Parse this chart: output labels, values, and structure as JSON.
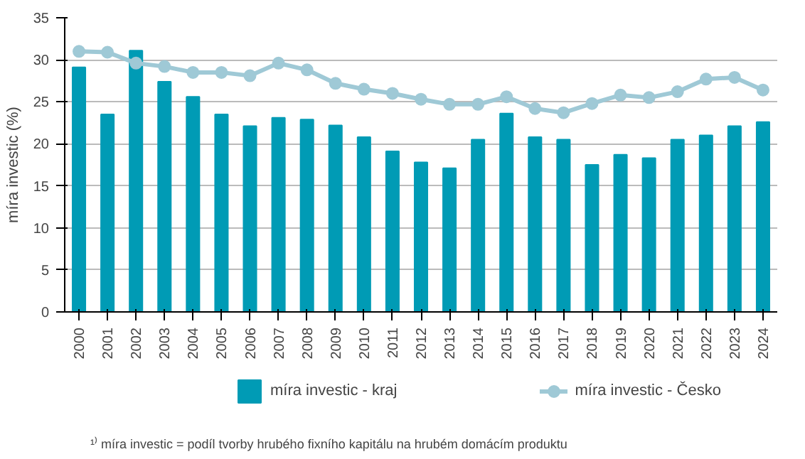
{
  "chart_data": {
    "type": "bar",
    "ylabel": "míra investic (%)",
    "categories": [
      "2000",
      "2001",
      "2002",
      "2003",
      "2004",
      "2005",
      "2006",
      "2007",
      "2008",
      "2009",
      "2010",
      "2011",
      "2012",
      "2013",
      "2014",
      "2015",
      "2016",
      "2017",
      "2018",
      "2019",
      "2020",
      "2021",
      "2022",
      "2023",
      "2024"
    ],
    "series": [
      {
        "name": "míra investic - kraj",
        "color": "#009bb5",
        "values": [
          29.1,
          23.5,
          31.1,
          27.4,
          25.6,
          23.5,
          22.1,
          23.1,
          22.9,
          22.2,
          20.8,
          19.1,
          17.8,
          17.1,
          20.5,
          23.6,
          20.8,
          20.5,
          17.5,
          18.7,
          18.3,
          20.5,
          21.0,
          22.1,
          22.6
        ]
      },
      {
        "name": "míra investic - Česko",
        "color": "#9fc9d6",
        "type": "line",
        "marker": "circle",
        "values": [
          31.0,
          30.9,
          29.6,
          29.2,
          28.5,
          28.5,
          28.1,
          29.6,
          28.8,
          27.2,
          26.5,
          26.0,
          25.3,
          24.7,
          24.7,
          25.6,
          24.2,
          23.7,
          24.8,
          25.8,
          25.5,
          26.2,
          27.7,
          27.9,
          26.4
        ]
      }
    ],
    "ylim": [
      0,
      35
    ],
    "yticks": [
      0,
      5,
      10,
      15,
      20,
      25,
      30,
      35
    ],
    "grid": "y",
    "legend": "bottom",
    "annotations": [
      "¹⁾ míra investic = podíl tvorby hrubého fixního kapitálu na hrubém domácím produktu"
    ]
  }
}
